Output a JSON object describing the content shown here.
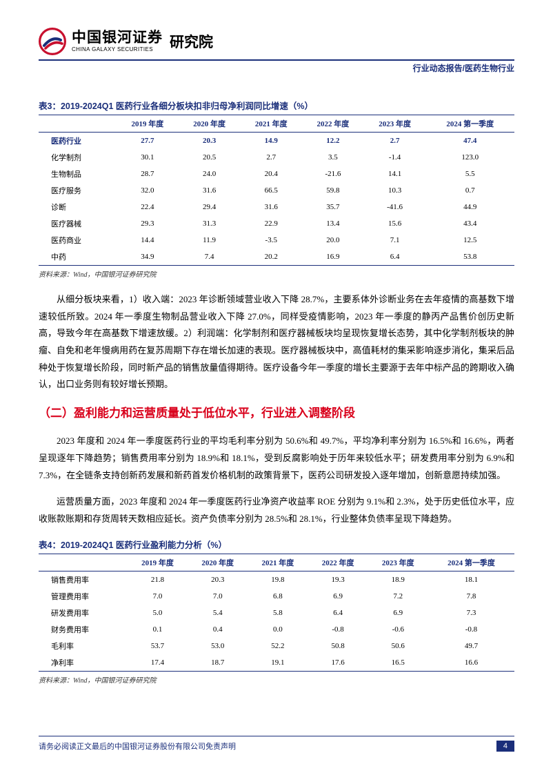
{
  "header": {
    "org_cn": "中国银河证券",
    "org_en": "CHINA GALAXY SECURITIES",
    "dept": "研究院",
    "top_right": "行业动态报告/医药生物行业"
  },
  "table3": {
    "title": "表3：2019-2024Q1 医药行业各细分板块扣非归母净利润同比增速（%）",
    "columns": [
      "",
      "2019 年度",
      "2020 年度",
      "2021 年度",
      "2022 年度",
      "2023 年度",
      "2024 第一季度"
    ],
    "rows": [
      [
        "医药行业",
        "27.7",
        "20.3",
        "14.9",
        "12.2",
        "2.7",
        "47.4"
      ],
      [
        "化学制剂",
        "30.1",
        "20.5",
        "2.7",
        "3.5",
        "-1.4",
        "123.0"
      ],
      [
        "生物制品",
        "28.7",
        "24.0",
        "20.4",
        "-21.6",
        "14.1",
        "5.5"
      ],
      [
        "医疗服务",
        "32.0",
        "31.6",
        "66.5",
        "59.8",
        "10.3",
        "0.7"
      ],
      [
        "诊断",
        "22.4",
        "29.4",
        "31.6",
        "35.7",
        "-41.6",
        "44.9"
      ],
      [
        "医疗器械",
        "29.3",
        "31.3",
        "22.9",
        "13.4",
        "15.6",
        "43.4"
      ],
      [
        "医药商业",
        "14.4",
        "11.9",
        "-3.5",
        "20.0",
        "7.1",
        "12.5"
      ],
      [
        "中药",
        "34.9",
        "7.4",
        "20.2",
        "16.9",
        "6.4",
        "53.8"
      ]
    ],
    "source": "资料来源：Wind，中国银河证券研究院",
    "bold_row_index": 0
  },
  "para1": "从细分板块来看，1）收入端：2023 年诊断领域营业收入下降 28.7%，主要系体外诊断业务在去年疫情的高基数下增速较低所致。2024 年一季度生物制品营业收入下降 27.0%，同样受疫情影响，2023 年一季度的静丙产品售价创历史新高，导致今年在高基数下增速放缓。2）利润端：化学制剂和医疗器械板块均呈现恢复增长态势，其中化学制剂板块的肿瘤、自免和老年慢病用药在复苏周期下存在增长加速的表现。医疗器械板块中，高值耗材的集采影响逐步消化，集采后品种处于恢复增长阶段，同时新产品的销售放量值得期待。医疗设备今年一季度的增长主要源于去年中标产品的跨期收入确认，出口业务则有较好增长预期。",
  "section_heading": "（二）盈利能力和运营质量处于低位水平，行业进入调整阶段",
  "para2": "2023 年度和 2024 年一季度医药行业的平均毛利率分别为 50.6%和 49.7%，平均净利率分别为 16.5%和 16.6%，两者呈现逐年下降趋势；销售费用率分别为 18.9%和 18.1%，受到反腐影响处于历年来较低水平；研发费用率分别为 6.9%和 7.3%，在全链条支持创新药发展和新药首发价格机制的政策背景下，医药公司研发投入逐年增加，创新意愿持续加强。",
  "para3": "运营质量方面，2023 年度和 2024 年一季度医药行业净资产收益率 ROE 分别为 9.1%和 2.3%，处于历史低位水平，应收账款账期和存货周转天数相应延长。资产负债率分别为 28.5%和 28.1%，行业整体负债率呈现下降趋势。",
  "table4": {
    "title": "表4：2019-2024Q1 医药行业盈利能力分析（%）",
    "columns": [
      "",
      "2019 年度",
      "2020 年度",
      "2021 年度",
      "2022 年度",
      "2023 年度",
      "2024 第一季度"
    ],
    "rows": [
      [
        "销售费用率",
        "21.8",
        "20.3",
        "19.8",
        "19.3",
        "18.9",
        "18.1"
      ],
      [
        "管理费用率",
        "7.0",
        "7.0",
        "6.8",
        "6.9",
        "7.2",
        "7.8"
      ],
      [
        "研发费用率",
        "5.0",
        "5.4",
        "5.8",
        "6.4",
        "6.9",
        "7.3"
      ],
      [
        "财务费用率",
        "0.1",
        "0.4",
        "0.0",
        "-0.8",
        "-0.6",
        "-0.8"
      ],
      [
        "毛利率",
        "53.7",
        "53.0",
        "52.2",
        "50.8",
        "50.6",
        "49.7"
      ],
      [
        "净利率",
        "17.4",
        "18.7",
        "19.1",
        "17.6",
        "16.5",
        "16.6"
      ]
    ],
    "source": "资料来源：Wind，中国银河证券研究院"
  },
  "footer": {
    "disclaimer": "请务必阅读正文最后的中国银河证券股份有限公司免责声明",
    "page_number": "4"
  },
  "colors": {
    "brand_blue": "#1a2e7a",
    "brand_red": "#d9001b"
  }
}
